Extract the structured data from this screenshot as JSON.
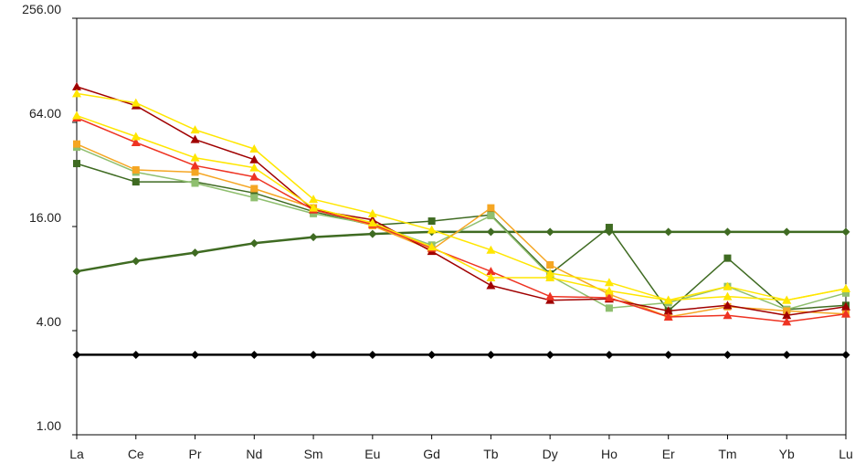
{
  "chart_data": {
    "type": "line",
    "y_scale": "log2",
    "ylim": [
      1,
      256
    ],
    "y_ticks": [
      {
        "value": 1,
        "label": "1.00"
      },
      {
        "value": 4,
        "label": "4.00"
      },
      {
        "value": 16,
        "label": "16.00"
      },
      {
        "value": 64,
        "label": "64.00"
      },
      {
        "value": 256,
        "label": "256.00"
      }
    ],
    "categories": [
      "La",
      "Ce",
      "Pr",
      "Nd",
      "Sm",
      "Eu",
      "Gd",
      "Tb",
      "Dy",
      "Ho",
      "Er",
      "Tm",
      "Yb",
      "Lu"
    ],
    "grid": false,
    "legend": "none",
    "series": [
      {
        "color": "#000000",
        "marker": "diamond",
        "width": 2.5,
        "values": [
          2.9,
          2.9,
          2.9,
          2.9,
          2.9,
          2.9,
          2.9,
          2.9,
          2.9,
          2.9,
          2.9,
          2.9,
          2.9,
          2.9
        ]
      },
      {
        "color": "#3f6b22",
        "marker": "diamond",
        "width": 2.5,
        "values": [
          8.8,
          10.1,
          11.3,
          12.8,
          13.9,
          14.5,
          14.9,
          14.9,
          14.9,
          14.9,
          14.9,
          14.9,
          14.9,
          14.9
        ]
      },
      {
        "color": "#3f6b22",
        "marker": "square",
        "width": 1.5,
        "values": [
          37,
          29,
          29,
          25,
          19.5,
          16.3,
          17.2,
          18.7,
          8.5,
          15.8,
          5.2,
          10.5,
          5.3,
          5.6
        ]
      },
      {
        "color": "#8fbf6f",
        "marker": "square",
        "width": 1.5,
        "values": [
          46,
          33,
          28.5,
          23.5,
          19,
          16.5,
          12.5,
          18.5,
          8.3,
          5.4,
          5.8,
          7.2,
          5.3,
          6.6
        ]
      },
      {
        "color": "#f5a623",
        "marker": "square",
        "width": 1.5,
        "values": [
          48,
          34,
          33,
          26.5,
          20.5,
          16.2,
          11.7,
          20.5,
          9.6,
          6.5,
          4.8,
          5.5,
          5.2,
          5.0
        ]
      },
      {
        "color": "#a00000",
        "marker": "triangle",
        "width": 1.5,
        "values": [
          103,
          80,
          51,
          39,
          20,
          17.5,
          11.5,
          7.3,
          6.0,
          6.1,
          5.2,
          5.6,
          4.9,
          5.5
        ]
      },
      {
        "color": "#ee3322",
        "marker": "triangle",
        "width": 1.5,
        "values": [
          68,
          49,
          36,
          31,
          20,
          16.5,
          12,
          8.8,
          6.3,
          6.2,
          4.8,
          4.9,
          4.5,
          5.0
        ]
      },
      {
        "color": "#ffe600",
        "marker": "triangle",
        "width": 1.5,
        "values": [
          94,
          83,
          58,
          45,
          23,
          19,
          15.3,
          11.7,
          8.6,
          7.6,
          6.0,
          6.3,
          6.0,
          7.0
        ]
      },
      {
        "color": "#ffe600",
        "marker": "triangle",
        "width": 1.5,
        "values": [
          70,
          53,
          40,
          35,
          20.5,
          16.8,
          12.2,
          8.1,
          8.1,
          6.8,
          6.0,
          7.2,
          6.0,
          7.0
        ]
      }
    ]
  }
}
